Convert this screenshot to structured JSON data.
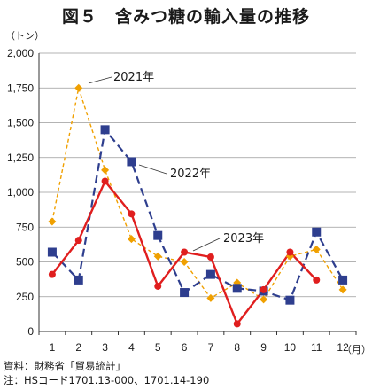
{
  "title": "図５　含みつ糖の輸入量の推移",
  "chart_data": {
    "type": "line",
    "y_unit": "（トン）",
    "x_unit": "（月）",
    "categories": [
      "1",
      "2",
      "3",
      "4",
      "5",
      "6",
      "7",
      "8",
      "9",
      "10",
      "11",
      "12"
    ],
    "ylim": [
      0,
      2000
    ],
    "yticks": [
      0,
      250,
      500,
      750,
      1000,
      1250,
      1500,
      1750,
      2000
    ],
    "ytick_labels": [
      "0",
      "250",
      "500",
      "750",
      "1,000",
      "1,250",
      "1,500",
      "1,750",
      "2,000"
    ],
    "grid": "horizontal",
    "series": [
      {
        "name": "2021年",
        "color": "#f0a000",
        "style": "dashed",
        "marker": "diamond",
        "values": [
          790,
          1750,
          1160,
          665,
          540,
          500,
          240,
          350,
          230,
          540,
          590,
          300
        ]
      },
      {
        "name": "2022年",
        "color": "#2e3e8e",
        "style": "dashed",
        "marker": "square",
        "values": [
          570,
          370,
          1450,
          1220,
          690,
          280,
          410,
          310,
          290,
          225,
          715,
          370
        ]
      },
      {
        "name": "2023年",
        "color": "#e01e1e",
        "style": "solid",
        "marker": "circle",
        "values": [
          410,
          655,
          1080,
          845,
          325,
          570,
          535,
          55,
          300,
          570,
          370,
          null
        ]
      }
    ]
  },
  "notes": {
    "source": "資料：財務省「貿易統計」",
    "note": "注：HSコード1701.13-000、1701.14-190"
  }
}
